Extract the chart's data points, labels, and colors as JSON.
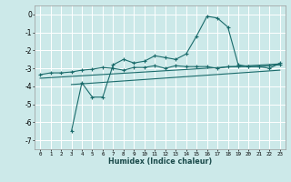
{
  "xlabel": "Humidex (Indice chaleur)",
  "background_color": "#cce9e9",
  "grid_color": "#ffffff",
  "line_color": "#1a6b6b",
  "xlim": [
    -0.5,
    23.5
  ],
  "ylim": [
    -7.5,
    0.5
  ],
  "yticks": [
    0,
    -1,
    -2,
    -3,
    -4,
    -5,
    -6,
    -7
  ],
  "xticks": [
    0,
    1,
    2,
    3,
    4,
    5,
    6,
    7,
    8,
    9,
    10,
    11,
    12,
    13,
    14,
    15,
    16,
    17,
    18,
    19,
    20,
    21,
    22,
    23
  ],
  "series1_x": [
    0,
    1,
    2,
    3,
    4,
    5,
    6,
    7,
    8,
    9,
    10,
    11,
    12,
    13,
    14,
    15,
    16,
    17,
    18,
    19,
    20,
    21,
    22,
    23
  ],
  "series1_y": [
    -3.35,
    -3.25,
    -3.25,
    -3.2,
    -3.1,
    -3.05,
    -2.95,
    -3.0,
    -3.1,
    -2.95,
    -2.95,
    -2.85,
    -3.0,
    -2.85,
    -2.9,
    -2.9,
    -2.9,
    -3.0,
    -2.9,
    -2.9,
    -2.9,
    -2.9,
    -2.85,
    -2.8
  ],
  "series2_x": [
    3,
    4,
    5,
    6,
    7,
    8,
    9,
    10,
    11,
    12,
    13,
    14,
    15,
    16,
    17,
    18,
    19,
    20,
    21,
    22,
    23
  ],
  "series2_y": [
    -6.5,
    -3.8,
    -4.6,
    -4.6,
    -2.8,
    -2.5,
    -2.7,
    -2.6,
    -2.3,
    -2.4,
    -2.5,
    -2.2,
    -1.2,
    -0.1,
    -0.2,
    -0.7,
    -2.8,
    -2.9,
    -2.9,
    -3.0,
    -2.7
  ],
  "series3_x": [
    0,
    23
  ],
  "series3_y": [
    -3.55,
    -2.75
  ],
  "series4_x": [
    3,
    23
  ],
  "series4_y": [
    -3.9,
    -3.1
  ]
}
